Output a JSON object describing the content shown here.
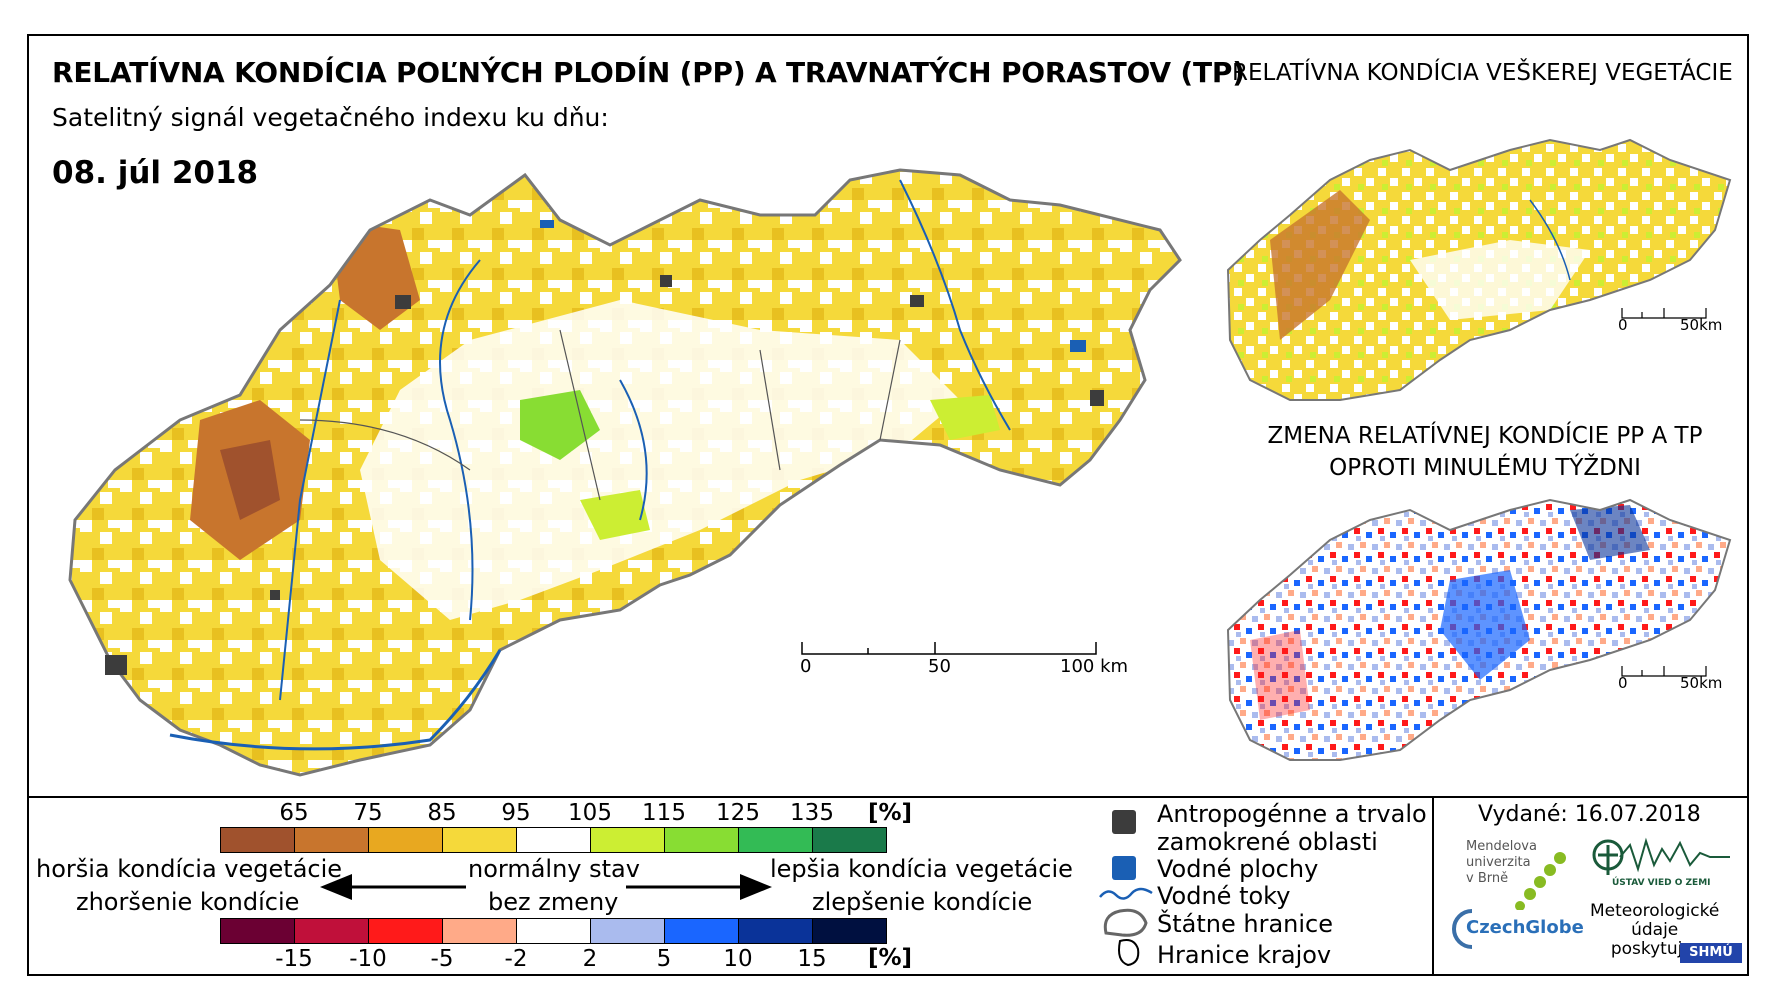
{
  "header": {
    "title": "RELATÍVNA KONDÍCIA POĽNÝCH PLODÍN (PP) A TRAVNATÝCH PORASTOV (TP)",
    "subtitle": "Satelitný signál vegetačného indexu ku dňu:",
    "date": "08. júl 2018"
  },
  "insets": {
    "vegetation_title": "RELATÍVNA KONDÍCIA VEŠKEREJ VEGETÁCIE",
    "change_title_line1": "ZMENA RELATÍVNEJ KONDÍCIE PP A TP",
    "change_title_line2": "OPROTI MINULÉMU TÝŽDNI",
    "scale_zero": "0",
    "scale_end": "50km"
  },
  "main_scale": {
    "zero": "0",
    "mid": "50",
    "end": "100 km"
  },
  "legend_condition": {
    "unit": "[%]",
    "breaks": [
      "65",
      "75",
      "85",
      "95",
      "105",
      "115",
      "125",
      "135"
    ],
    "colors": [
      "#a0522d",
      "#c8752d",
      "#e8a820",
      "#f5d93a",
      "#ffffff",
      "#ccee33",
      "#88dd33",
      "#33bb55",
      "#1a7a4a"
    ]
  },
  "legend_change": {
    "unit": "[%]",
    "breaks": [
      "-15",
      "-10",
      "-5",
      "-2",
      "2",
      "5",
      "10",
      "15"
    ],
    "colors": [
      "#6b0033",
      "#c0103a",
      "#ff1a1a",
      "#ffaa88",
      "#ffffff",
      "#aabbee",
      "#1a66ff",
      "#0a3399",
      "#001040"
    ]
  },
  "legend_text": {
    "worse_condition": "horšia kondícia vegetácie",
    "worse_change": "zhoršenie kondície",
    "normal": "normálny stav",
    "no_change": "bez zmeny",
    "better_condition": "lepšia kondícia vegetácie",
    "better_change": "zlepšenie kondície"
  },
  "map_legend": {
    "anthropogenic_line1": "Antropogénne a trvalo",
    "anthropogenic_line2": "zamokrené oblasti",
    "water_bodies": "Vodné plochy",
    "water_streams": "Vodné toky",
    "state_border": "Štátne hranice",
    "region_border": "Hranice krajov"
  },
  "footer": {
    "issued": "Vydané: 16.07.2018",
    "mendel_line1": "Mendelova",
    "mendel_line2": "univerzita",
    "mendel_line3": "v Brně",
    "czechglobe": "CzechGlobe",
    "institute": "ÚSTAV VIED O ZEMI",
    "meteo_line1": "Meteorologické",
    "meteo_line2": "údaje",
    "meteo_line3": "poskytuje:",
    "shmu": "SHMÚ"
  },
  "colors": {
    "water": "#1a5fb4",
    "urban": "#3c3c3c",
    "border": "#777777"
  }
}
